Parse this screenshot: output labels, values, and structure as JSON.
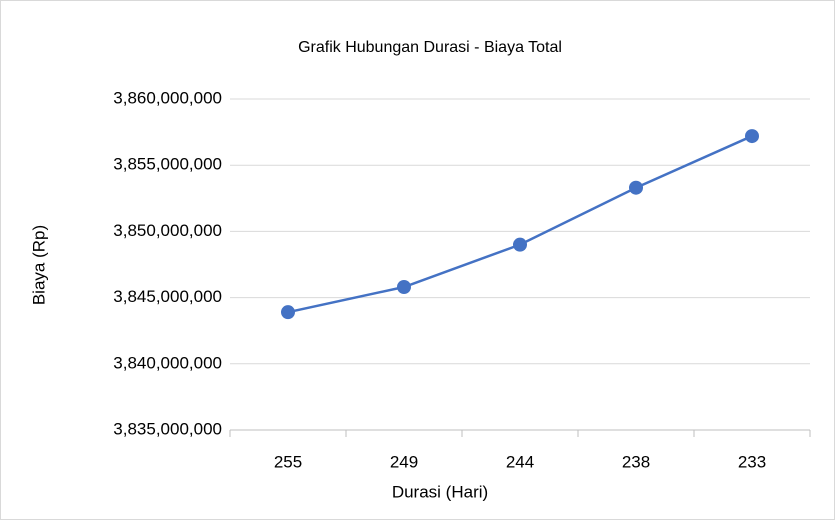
{
  "chart_data": {
    "type": "line",
    "title": "Grafik Hubungan Durasi - Biaya Total",
    "x_label": "Durasi (Hari)",
    "y_label": "Biaya (Rp)",
    "categories": [
      "255",
      "249",
      "244",
      "238",
      "233"
    ],
    "series": [
      {
        "name": "Biaya Total",
        "color": "#4472c4",
        "values": [
          3843900000,
          3845800000,
          3849000000,
          3853300000,
          3857200000
        ]
      }
    ],
    "ylim": [
      3835000000,
      3860000000
    ],
    "yticks": [
      {
        "value": 3835000000,
        "label": "3,835,000,000"
      },
      {
        "value": 3840000000,
        "label": "3,840,000,000"
      },
      {
        "value": 3845000000,
        "label": "3,845,000,000"
      },
      {
        "value": 3850000000,
        "label": "3,850,000,000"
      },
      {
        "value": 3855000000,
        "label": "3,855,000,000"
      },
      {
        "value": 3860000000,
        "label": "3,860,000,000"
      }
    ],
    "grid": true
  }
}
